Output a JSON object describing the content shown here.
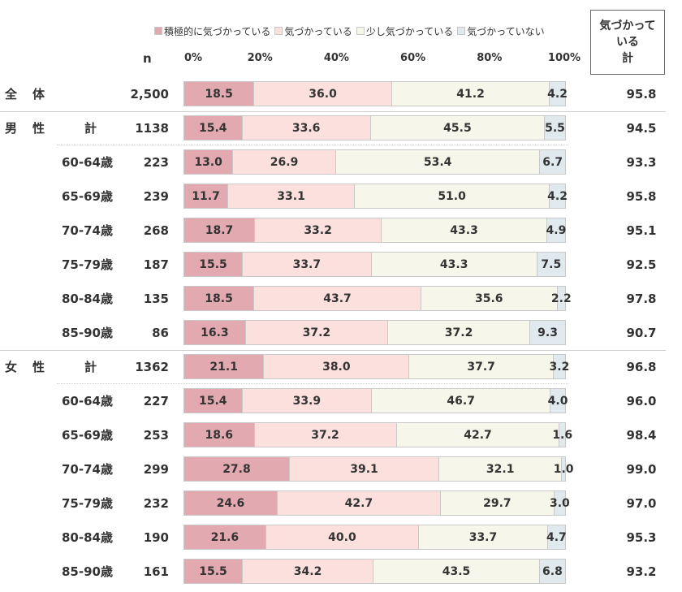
{
  "chart_data": {
    "type": "bar",
    "orientation": "horizontal",
    "stacked": true,
    "xlim": [
      0,
      100
    ],
    "x_ticks": [
      "0%",
      "20%",
      "40%",
      "60%",
      "80%",
      "100%"
    ],
    "n_header": "n",
    "total_header": [
      "気づかって",
      "いる",
      "計"
    ],
    "legend_position": "top",
    "series": [
      {
        "name": "積極的に気づかっている",
        "color": "#e3a9b1"
      },
      {
        "name": "気づかっている",
        "color": "#fce0dd"
      },
      {
        "name": "少し気づかっている",
        "color": "#f6f6ea"
      },
      {
        "name": "気づかっていない",
        "color": "#e0e9ee"
      }
    ],
    "rows": [
      {
        "g1": "全",
        "g2": "体",
        "sub": "",
        "n": "2,500",
        "values": [
          18.5,
          36.0,
          41.2,
          4.2
        ],
        "labels": [
          "18.5",
          "36.0",
          "41.2",
          "4.2"
        ],
        "total": "95.8"
      },
      {
        "g1": "男",
        "g2": "性",
        "sub": "計",
        "n": "1138",
        "values": [
          15.4,
          33.6,
          45.5,
          5.5
        ],
        "labels": [
          "15.4",
          "33.6",
          "45.5",
          "5.5"
        ],
        "total": "94.5"
      },
      {
        "g1": "",
        "g2": "",
        "sub": "60-64歳",
        "n": "223",
        "values": [
          13.0,
          26.9,
          53.4,
          6.7
        ],
        "labels": [
          "13.0",
          "26.9",
          "53.4",
          "6.7"
        ],
        "total": "93.3"
      },
      {
        "g1": "",
        "g2": "",
        "sub": "65-69歳",
        "n": "239",
        "values": [
          11.7,
          33.1,
          51.0,
          4.2
        ],
        "labels": [
          "11.7",
          "33.1",
          "51.0",
          "4.2"
        ],
        "total": "95.8"
      },
      {
        "g1": "",
        "g2": "",
        "sub": "70-74歳",
        "n": "268",
        "values": [
          18.7,
          33.2,
          43.3,
          4.9
        ],
        "labels": [
          "18.7",
          "33.2",
          "43.3",
          "4.9"
        ],
        "total": "95.1"
      },
      {
        "g1": "",
        "g2": "",
        "sub": "75-79歳",
        "n": "187",
        "values": [
          15.5,
          33.7,
          43.3,
          7.5
        ],
        "labels": [
          "15.5",
          "33.7",
          "43.3",
          "7.5"
        ],
        "total": "92.5"
      },
      {
        "g1": "",
        "g2": "",
        "sub": "80-84歳",
        "n": "135",
        "values": [
          18.5,
          43.7,
          35.6,
          2.2
        ],
        "labels": [
          "18.5",
          "43.7",
          "35.6",
          "2.2"
        ],
        "total": "97.8"
      },
      {
        "g1": "",
        "g2": "",
        "sub": "85-90歳",
        "n": "86",
        "values": [
          16.3,
          37.2,
          37.2,
          9.3
        ],
        "labels": [
          "16.3",
          "37.2",
          "37.2",
          "9.3"
        ],
        "total": "90.7"
      },
      {
        "g1": "女",
        "g2": "性",
        "sub": "計",
        "n": "1362",
        "values": [
          21.1,
          38.0,
          37.7,
          3.2
        ],
        "labels": [
          "21.1",
          "38.0",
          "37.7",
          "3.2"
        ],
        "total": "96.8"
      },
      {
        "g1": "",
        "g2": "",
        "sub": "60-64歳",
        "n": "227",
        "values": [
          15.4,
          33.9,
          46.7,
          4.0
        ],
        "labels": [
          "15.4",
          "33.9",
          "46.7",
          "4.0"
        ],
        "total": "96.0"
      },
      {
        "g1": "",
        "g2": "",
        "sub": "65-69歳",
        "n": "253",
        "values": [
          18.6,
          37.2,
          42.7,
          1.6
        ],
        "labels": [
          "18.6",
          "37.2",
          "42.7",
          "1.6"
        ],
        "total": "98.4"
      },
      {
        "g1": "",
        "g2": "",
        "sub": "70-74歳",
        "n": "299",
        "values": [
          27.8,
          39.1,
          32.1,
          1.0
        ],
        "labels": [
          "27.8",
          "39.1",
          "32.1",
          "1.0"
        ],
        "total": "99.0"
      },
      {
        "g1": "",
        "g2": "",
        "sub": "75-79歳",
        "n": "232",
        "values": [
          24.6,
          42.7,
          29.7,
          3.0
        ],
        "labels": [
          "24.6",
          "42.7",
          "29.7",
          "3.0"
        ],
        "total": "97.0"
      },
      {
        "g1": "",
        "g2": "",
        "sub": "80-84歳",
        "n": "190",
        "values": [
          21.6,
          40.0,
          33.7,
          4.7
        ],
        "labels": [
          "21.6",
          "40.0",
          "33.7",
          "4.7"
        ],
        "total": "95.3"
      },
      {
        "g1": "",
        "g2": "",
        "sub": "85-90歳",
        "n": "161",
        "values": [
          15.5,
          34.2,
          43.5,
          6.8
        ],
        "labels": [
          "15.5",
          "34.2",
          "43.5",
          "6.8"
        ],
        "total": "93.2"
      }
    ]
  }
}
